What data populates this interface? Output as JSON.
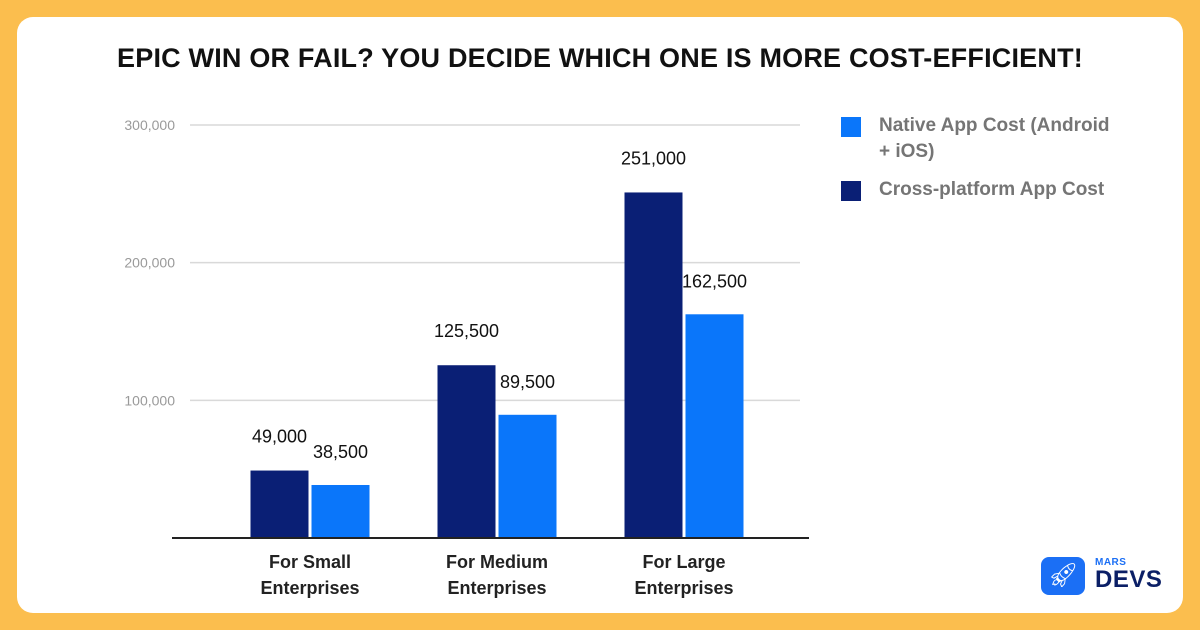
{
  "chart_data": {
    "type": "bar",
    "title": "EPIC WIN OR FAIL? YOU DECIDE WHICH ONE IS MORE COST-EFFICIENT!",
    "categories": [
      [
        "For Small",
        "Enterprises"
      ],
      [
        "For Medium",
        "Enterprises"
      ],
      [
        "For Large",
        "Enterprises"
      ]
    ],
    "series": [
      {
        "name": "Cross-platform App Cost",
        "color": "#0A1F75",
        "values": [
          49000,
          125500,
          251000
        ],
        "labels": [
          "49,000",
          "125,500",
          "251,000"
        ]
      },
      {
        "name": "Native App Cost (Android + iOS)",
        "color": "#0A76FA",
        "values": [
          38500,
          89500,
          162500
        ],
        "labels": [
          "38,500",
          "89,500",
          "162,500"
        ]
      }
    ],
    "ylim": [
      0,
      300000
    ],
    "yticks": [
      100000,
      200000,
      300000
    ],
    "ytick_labels": [
      "100,000",
      "200,000",
      "300,000"
    ],
    "xlabel": "",
    "ylabel": "",
    "grid": true,
    "legend": {
      "position": "right",
      "order": [
        "Native App Cost (Android + iOS)",
        "Cross-platform App Cost"
      ],
      "lines": [
        [
          "Native App Cost (Android",
          "+ iOS)"
        ],
        [
          "Cross-platform App Cost"
        ]
      ]
    }
  },
  "logo": {
    "small": "MARS",
    "main": "DEVS",
    "icon": "rocket-icon"
  }
}
